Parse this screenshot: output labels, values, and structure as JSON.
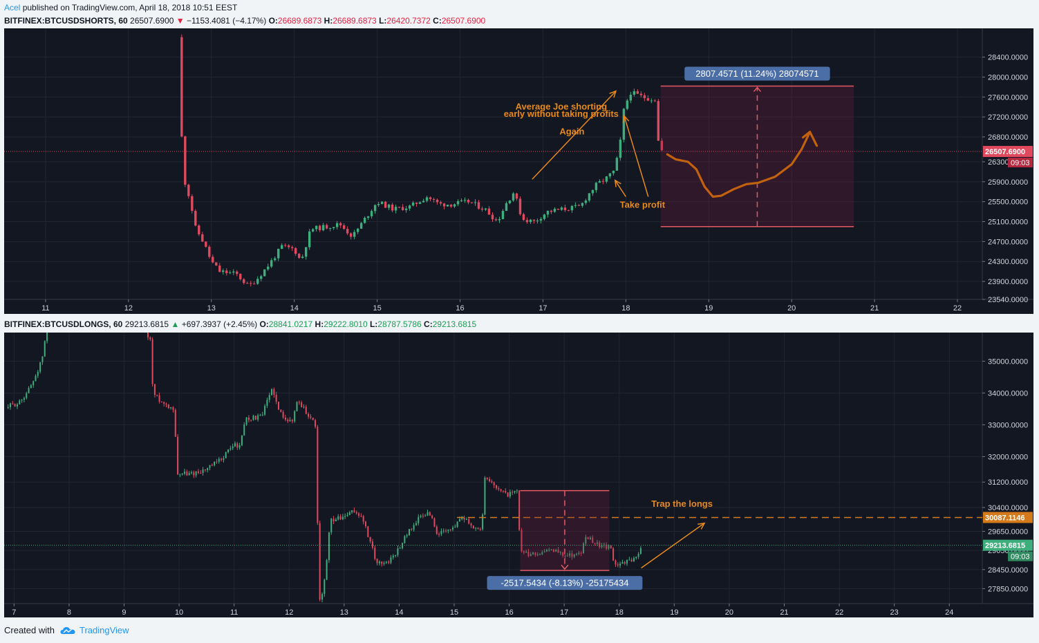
{
  "published": {
    "author": "Acel",
    "text": "published on TradingView.com, April 18, 2018 10:51 EEST"
  },
  "top_header": {
    "symbol": "BITFINEX:BTCUSDSHORTS, 60",
    "last": "26507.6900",
    "arrow": "▼",
    "change": "−1153.4081 (−4.17%)",
    "o_label": "O:",
    "o": "26689.6873",
    "h_label": "H:",
    "h": "26689.6873",
    "l_label": "L:",
    "l": "26420.7372",
    "c_label": "C:",
    "c": "26507.6900"
  },
  "bottom_header": {
    "symbol": "BITFINEX:BTCUSDLONGS, 60",
    "last": "29213.6815",
    "arrow": "▲",
    "change": "+697.3937 (+2.45%)",
    "o_label": "O:",
    "o": "28841.0217",
    "h_label": "H:",
    "h": "29222.8010",
    "l_label": "L:",
    "l": "28787.5786",
    "c_label": "C:",
    "c": "29213.6815"
  },
  "footer": {
    "created_with": "Created with",
    "brand": "TradingView"
  },
  "colors": {
    "up": "#3fae7d",
    "down": "#e0495e",
    "bg": "#131722",
    "grid": "#222632",
    "annotation": "#e8891c",
    "measure": "#e55a63",
    "label_bg": "#4b6ea7"
  },
  "chart_data": [
    {
      "type": "candlestick",
      "symbol": "BITFINEX:BTCUSDSHORTS",
      "interval": "60",
      "x_axis_ticks": [
        "11",
        "12",
        "13",
        "14",
        "15",
        "16",
        "17",
        "18",
        "19",
        "20",
        "21",
        "22"
      ],
      "y_axis_ticks": [
        "28400.0000",
        "28000.0000",
        "27600.0000",
        "27200.0000",
        "26800.0000",
        "26300.0000",
        "25900.0000",
        "25500.0000",
        "25100.0000",
        "24700.0000",
        "24300.0000",
        "23900.0000",
        "23540.0000"
      ],
      "ylim": [
        23540,
        28700
      ],
      "xlim_days": [
        10.5,
        22.3
      ],
      "last_price_label": "26507.6900",
      "countdown_label": "09:03",
      "close_path": [
        [
          12.6,
          28800
        ],
        [
          12.62,
          27300
        ],
        [
          12.68,
          25900
        ],
        [
          12.75,
          25500
        ],
        [
          12.8,
          25000
        ],
        [
          12.9,
          24700
        ],
        [
          13.0,
          24300
        ],
        [
          13.1,
          24100
        ],
        [
          13.3,
          24050
        ],
        [
          13.45,
          23800
        ],
        [
          13.55,
          23950
        ],
        [
          13.7,
          24250
        ],
        [
          13.85,
          24600
        ],
        [
          14.0,
          24550
        ],
        [
          14.08,
          24300
        ],
        [
          14.2,
          24950
        ],
        [
          14.4,
          25000
        ],
        [
          14.55,
          25050
        ],
        [
          14.7,
          24800
        ],
        [
          14.85,
          25150
        ],
        [
          15.0,
          25500
        ],
        [
          15.2,
          25350
        ],
        [
          15.4,
          25400
        ],
        [
          15.6,
          25600
        ],
        [
          15.75,
          25450
        ],
        [
          15.9,
          25450
        ],
        [
          16.1,
          25500
        ],
        [
          16.3,
          25350
        ],
        [
          16.45,
          25100
        ],
        [
          16.55,
          25450
        ],
        [
          16.65,
          25700
        ],
        [
          16.75,
          25150
        ],
        [
          16.9,
          25100
        ],
        [
          17.05,
          25300
        ],
        [
          17.25,
          25350
        ],
        [
          17.45,
          25400
        ],
        [
          17.55,
          25650
        ],
        [
          17.65,
          25850
        ],
        [
          17.75,
          25950
        ],
        [
          17.85,
          26100
        ],
        [
          17.92,
          26500
        ],
        [
          17.97,
          27300
        ],
        [
          18.05,
          27700
        ],
        [
          18.2,
          27600
        ],
        [
          18.35,
          27550
        ],
        [
          18.37,
          26850
        ],
        [
          18.42,
          26550
        ],
        [
          18.45,
          26508
        ]
      ],
      "measure": {
        "label": "2807.4571 (11.24%) 28074571",
        "x_start_day": 18.42,
        "x_end_day": 20.75,
        "y_top": 27820,
        "y_bottom": 25000
      },
      "projection_path": [
        [
          18.5,
          26450
        ],
        [
          18.6,
          26350
        ],
        [
          18.75,
          26300
        ],
        [
          18.85,
          26150
        ],
        [
          18.95,
          25800
        ],
        [
          19.05,
          25600
        ],
        [
          19.15,
          25620
        ],
        [
          19.3,
          25750
        ],
        [
          19.45,
          25850
        ],
        [
          19.6,
          25880
        ],
        [
          19.8,
          26000
        ],
        [
          20.0,
          26250
        ],
        [
          20.12,
          26550
        ],
        [
          20.22,
          26900
        ]
      ],
      "annotations": [
        {
          "text": "Average Joe shorting",
          "x_day": 17.22,
          "y": 27350
        },
        {
          "text": "early without taking profits",
          "x_day": 17.22,
          "y": 27200
        },
        {
          "text": "Again",
          "x_day": 17.35,
          "y": 26850
        },
        {
          "text": "Take profit",
          "x_day": 18.2,
          "y": 25380
        }
      ]
    },
    {
      "type": "candlestick",
      "symbol": "BITFINEX:BTCUSDLONGS",
      "interval": "60",
      "x_axis_ticks": [
        "7",
        "8",
        "9",
        "10",
        "11",
        "12",
        "13",
        "14",
        "15",
        "16",
        "17",
        "18",
        "19",
        "20",
        "21",
        "22",
        "23",
        "24"
      ],
      "y_axis_ticks": [
        "35000.0000",
        "34000.0000",
        "33000.0000",
        "32000.0000",
        "31200.0000",
        "30400.0000",
        "29650.0000",
        "29050.0000",
        "28450.0000",
        "27850.0000"
      ],
      "ylim": [
        27380,
        35900
      ],
      "xlim_days": [
        6.82,
        24.6
      ],
      "last_price_label": "29213.6815",
      "countdown_label": "09:03",
      "trap_level_label": "30087.1146",
      "trap_level": 30087.1146,
      "close_path": [
        [
          6.85,
          33550
        ],
        [
          7.1,
          33700
        ],
        [
          7.3,
          34200
        ],
        [
          7.5,
          35000
        ],
        [
          7.62,
          36200
        ],
        [
          9.3,
          36200
        ],
        [
          9.5,
          35600
        ],
        [
          9.52,
          34000
        ],
        [
          9.7,
          33700
        ],
        [
          9.92,
          33500
        ],
        [
          9.95,
          31500
        ],
        [
          10.2,
          31450
        ],
        [
          10.5,
          31600
        ],
        [
          10.75,
          31900
        ],
        [
          11.0,
          32400
        ],
        [
          11.1,
          32300
        ],
        [
          11.2,
          33200
        ],
        [
          11.5,
          33250
        ],
        [
          11.7,
          34200
        ],
        [
          11.8,
          33450
        ],
        [
          12.05,
          33050
        ],
        [
          12.15,
          33800
        ],
        [
          12.35,
          33300
        ],
        [
          12.5,
          32950
        ],
        [
          12.53,
          27380
        ],
        [
          12.62,
          27700
        ],
        [
          12.75,
          30000
        ],
        [
          13.0,
          30100
        ],
        [
          13.2,
          30300
        ],
        [
          13.35,
          30000
        ],
        [
          13.45,
          29400
        ],
        [
          13.6,
          28650
        ],
        [
          13.8,
          28700
        ],
        [
          13.95,
          29000
        ],
        [
          14.15,
          29600
        ],
        [
          14.35,
          30050
        ],
        [
          14.55,
          30250
        ],
        [
          14.7,
          29550
        ],
        [
          14.95,
          29700
        ],
        [
          15.15,
          30150
        ],
        [
          15.35,
          29800
        ],
        [
          15.5,
          29700
        ],
        [
          15.55,
          31300
        ],
        [
          15.75,
          31100
        ],
        [
          15.95,
          30800
        ],
        [
          16.15,
          30900
        ],
        [
          16.2,
          29000
        ],
        [
          16.4,
          28900
        ],
        [
          16.6,
          29000
        ],
        [
          16.85,
          29050
        ],
        [
          17.0,
          28900
        ],
        [
          17.3,
          28950
        ],
        [
          17.4,
          29500
        ],
        [
          17.65,
          29200
        ],
        [
          17.85,
          29100
        ],
        [
          17.9,
          28650
        ],
        [
          18.1,
          28650
        ],
        [
          18.3,
          28850
        ],
        [
          18.42,
          29213
        ]
      ],
      "measure": {
        "label": "-2517.5434 (-8.13%) -25175434",
        "x_start_day": 16.2,
        "x_end_day": 17.82,
        "y_top": 30930,
        "y_bottom": 28420
      },
      "annotations": [
        {
          "text": "Trap the longs",
          "x_day": 18.08,
          "y": 30420
        }
      ]
    }
  ]
}
